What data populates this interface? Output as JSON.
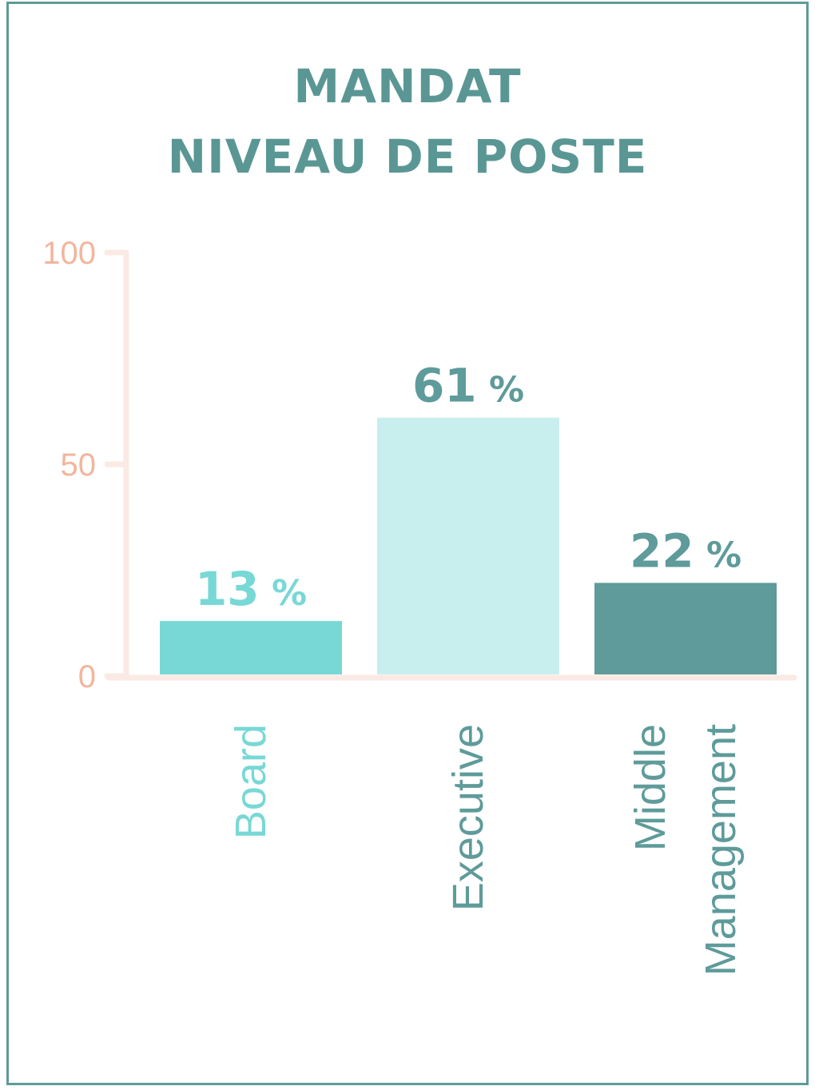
{
  "header": {
    "line1": "MANDAT",
    "line2": "NIVEAU DE POSTE"
  },
  "colors": {
    "frame": "#5e9b98",
    "title": "#5a9794",
    "axis": "#fbeae4",
    "tick_text": "#f2b59c"
  },
  "chart_data": {
    "type": "bar",
    "title": "MANDAT NIVEAU DE POSTE",
    "categories": [
      "Board",
      "Executive",
      "Middle Management"
    ],
    "category_label_lines": [
      [
        "Board"
      ],
      [
        "Executive"
      ],
      [
        "Middle",
        "Management"
      ]
    ],
    "values": [
      13,
      61,
      22
    ],
    "value_unit": "%",
    "bar_colors": [
      "#78d8d6",
      "#c8eeee",
      "#5e9b9a"
    ],
    "value_label_colors": [
      "#78d8d6",
      "#5e9b9a",
      "#5e9b9a"
    ],
    "category_label_colors": [
      "#78d8d6",
      "#5e9b9a",
      "#5e9b9a"
    ],
    "ylim": [
      0,
      100
    ],
    "yticks": [
      0,
      50,
      100
    ],
    "xlabel": "",
    "ylabel": "",
    "grid": false,
    "legend": "none"
  }
}
